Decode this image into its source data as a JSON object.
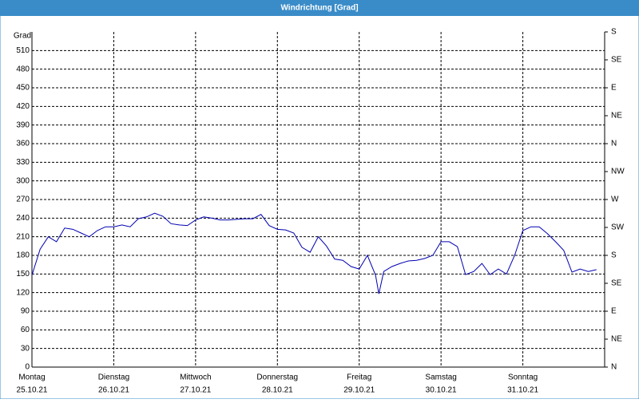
{
  "chart_data": {
    "type": "line",
    "title": "Windrichtung [Grad]",
    "ylabel": "Grad",
    "xlim": [
      0,
      7
    ],
    "ylim": [
      0,
      540
    ],
    "y2lim": [
      0,
      540
    ],
    "xticks": [
      {
        "value": 0,
        "label": [
          "Montag",
          "25.10.21"
        ]
      },
      {
        "value": 1,
        "label": [
          "Dienstag",
          "26.10.21"
        ]
      },
      {
        "value": 2,
        "label": [
          "Mittwoch",
          "27.10.21"
        ]
      },
      {
        "value": 3,
        "label": [
          "Donnerstag",
          "28.10.21"
        ]
      },
      {
        "value": 4,
        "label": [
          "Freitag",
          "29.10.21"
        ]
      },
      {
        "value": 5,
        "label": [
          "Samstag",
          "30.10.21"
        ]
      },
      {
        "value": 6,
        "label": [
          "Sonntag",
          "31.10.21"
        ]
      }
    ],
    "yticks": [
      0,
      30,
      60,
      90,
      120,
      150,
      180,
      210,
      240,
      270,
      300,
      330,
      360,
      390,
      420,
      450,
      480,
      510
    ],
    "y2ticks": [
      {
        "value": 0,
        "label": "N"
      },
      {
        "value": 45,
        "label": "NE"
      },
      {
        "value": 90,
        "label": "E"
      },
      {
        "value": 135,
        "label": "SE"
      },
      {
        "value": 180,
        "label": "S"
      },
      {
        "value": 225,
        "label": "SW"
      },
      {
        "value": 270,
        "label": "W"
      },
      {
        "value": 315,
        "label": "NW"
      },
      {
        "value": 360,
        "label": "N"
      },
      {
        "value": 405,
        "label": "NE"
      },
      {
        "value": 450,
        "label": "E"
      },
      {
        "value": 495,
        "label": "SE"
      },
      {
        "value": 540,
        "label": "S"
      }
    ],
    "grid": true,
    "x": [
      0,
      0.1,
      0.2,
      0.3,
      0.4,
      0.5,
      0.6,
      0.7,
      0.8,
      0.9,
      1.0,
      1.1,
      1.2,
      1.3,
      1.4,
      1.5,
      1.6,
      1.7,
      1.8,
      1.9,
      2.0,
      2.1,
      2.2,
      2.3,
      2.4,
      2.5,
      2.6,
      2.7,
      2.8,
      2.9,
      3.0,
      3.1,
      3.2,
      3.3,
      3.4,
      3.5,
      3.6,
      3.7,
      3.8,
      3.9,
      4.0,
      4.1,
      4.2,
      4.24,
      4.3,
      4.4,
      4.5,
      4.6,
      4.7,
      4.8,
      4.9,
      5.0,
      5.1,
      5.2,
      5.3,
      5.4,
      5.5,
      5.6,
      5.7,
      5.8,
      5.9,
      6.0,
      6.1,
      6.2,
      6.3,
      6.4,
      6.5,
      6.6,
      6.7,
      6.8,
      6.9
    ],
    "series": [
      {
        "name": "Windrichtung",
        "color": "#0000b0",
        "values": [
          148,
          190,
          210,
          202,
          224,
          222,
          216,
          210,
          220,
          226,
          226,
          229,
          226,
          239,
          242,
          248,
          243,
          231,
          229,
          228,
          237,
          242,
          240,
          237,
          237,
          238,
          239,
          239,
          246,
          228,
          222,
          221,
          216,
          193,
          185,
          210,
          195,
          174,
          172,
          162,
          158,
          180,
          148,
          118,
          154,
          162,
          167,
          171,
          172,
          175,
          180,
          202,
          202,
          194,
          149,
          154,
          167,
          149,
          158,
          150,
          180,
          220,
          226,
          226,
          215,
          202,
          188,
          153,
          158,
          154,
          157
        ]
      }
    ]
  }
}
